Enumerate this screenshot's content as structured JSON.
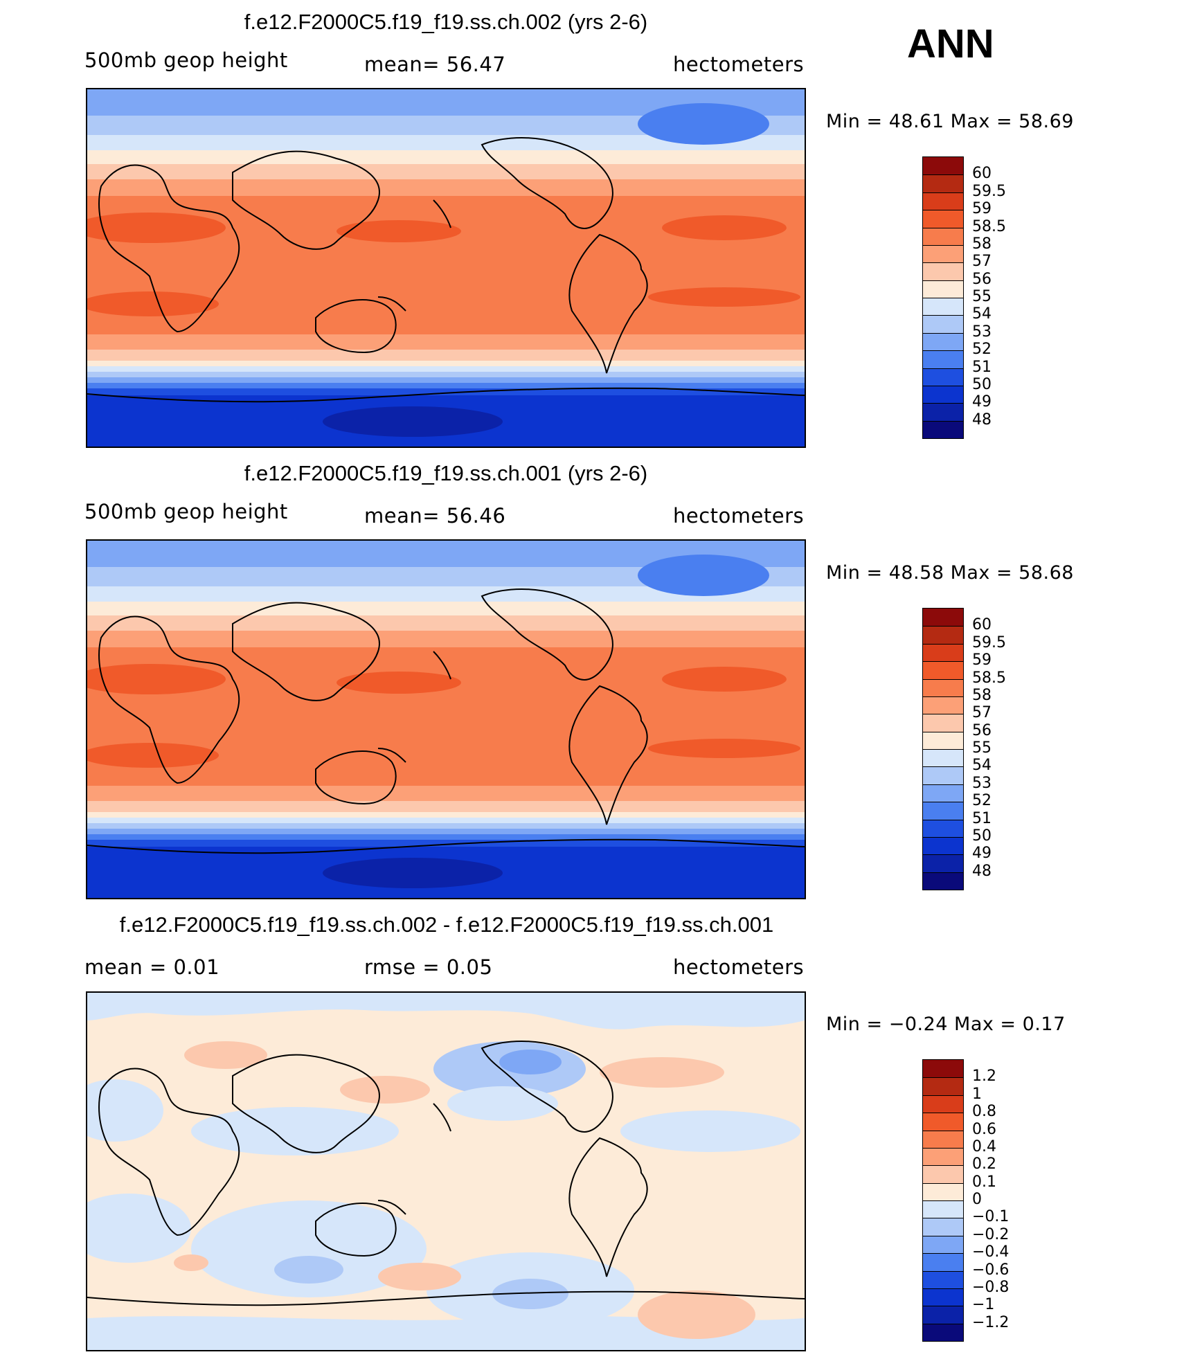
{
  "season": "ANN",
  "panels": [
    {
      "title": "f.e12.F2000C5.f19_f19.ss.ch.002 (yrs 2-6)",
      "left_label": "500mb  geop  height",
      "mid_label": "mean=   56.47",
      "right_label": "hectometers",
      "minmax": "Min  =    48.61  Max  =    58.69"
    },
    {
      "title": "f.e12.F2000C5.f19_f19.ss.ch.001 (yrs 2-6)",
      "left_label": "500mb  geop  height",
      "mid_label": "mean=   56.46",
      "right_label": "hectometers",
      "minmax": "Min  =    48.58  Max  =    58.68"
    },
    {
      "title": "f.e12.F2000C5.f19_f19.ss.ch.002 - f.e12.F2000C5.f19_f19.ss.ch.001",
      "left_label": "mean  =      0.01",
      "mid_label": "rmse  =      0.05",
      "right_label": "hectometers",
      "minmax": "Min  =   −0.24  Max  =      0.17"
    }
  ],
  "chart_data": [
    {
      "type": "heatmap",
      "title": "f.e12.F2000C5.f19_f19.ss.ch.002 (yrs 2-6)",
      "variable": "500mb geop height",
      "units": "hectometers",
      "mean": 56.47,
      "min": 48.61,
      "max": 58.69,
      "contour_levels": [
        48,
        49,
        50,
        51,
        52,
        53,
        54,
        55,
        56,
        57,
        58,
        58.5,
        59,
        59.5,
        60
      ],
      "colors": [
        "#0a0a7a",
        "#0b22a8",
        "#0c34cf",
        "#1e4fe0",
        "#4a7ff0",
        "#7ea7f5",
        "#aec9f7",
        "#d6e6fa",
        "#fdebd8",
        "#fcc8ad",
        "#fca077",
        "#f77c4c",
        "#f05a2a",
        "#d93d1a",
        "#b42a12",
        "#8c0a0a"
      ],
      "projection": "cylindrical equidistant, centered 180"
    },
    {
      "type": "heatmap",
      "title": "f.e12.F2000C5.f19_f19.ss.ch.001 (yrs 2-6)",
      "variable": "500mb geop height",
      "units": "hectometers",
      "mean": 56.46,
      "min": 48.58,
      "max": 58.68,
      "contour_levels": [
        48,
        49,
        50,
        51,
        52,
        53,
        54,
        55,
        56,
        57,
        58,
        58.5,
        59,
        59.5,
        60
      ],
      "colors": [
        "#0a0a7a",
        "#0b22a8",
        "#0c34cf",
        "#1e4fe0",
        "#4a7ff0",
        "#7ea7f5",
        "#aec9f7",
        "#d6e6fa",
        "#fdebd8",
        "#fcc8ad",
        "#fca077",
        "#f77c4c",
        "#f05a2a",
        "#d93d1a",
        "#b42a12",
        "#8c0a0a"
      ],
      "projection": "cylindrical equidistant, centered 180"
    },
    {
      "type": "heatmap",
      "title": "f.e12.F2000C5.f19_f19.ss.ch.002 - f.e12.F2000C5.f19_f19.ss.ch.001",
      "variable": "difference",
      "units": "hectometers",
      "mean": 0.01,
      "rmse": 0.05,
      "min": -0.24,
      "max": 0.17,
      "contour_levels": [
        -1.2,
        -1,
        -0.8,
        -0.6,
        -0.4,
        -0.2,
        -0.1,
        0,
        0.1,
        0.2,
        0.4,
        0.6,
        0.8,
        1,
        1.2
      ],
      "colors": [
        "#0a0a7a",
        "#0b22a8",
        "#0c34cf",
        "#1e4fe0",
        "#4a7ff0",
        "#7ea7f5",
        "#aec9f7",
        "#d6e6fa",
        "#fdebd8",
        "#fcc8ad",
        "#fca077",
        "#f77c4c",
        "#f05a2a",
        "#d93d1a",
        "#b42a12",
        "#8c0a0a"
      ],
      "projection": "cylindrical equidistant, centered 180"
    }
  ],
  "colorbars": [
    {
      "labels": [
        "60",
        "59.5",
        "59",
        "58.5",
        "58",
        "57",
        "56",
        "55",
        "54",
        "53",
        "52",
        "51",
        "50",
        "49",
        "48"
      ]
    },
    {
      "labels": [
        "60",
        "59.5",
        "59",
        "58.5",
        "58",
        "57",
        "56",
        "55",
        "54",
        "53",
        "52",
        "51",
        "50",
        "49",
        "48"
      ]
    },
    {
      "labels": [
        "1.2",
        "1",
        "0.8",
        "0.6",
        "0.4",
        "0.2",
        "0.1",
        "0",
        "−0.1",
        "−0.2",
        "−0.4",
        "−0.6",
        "−0.8",
        "−1",
        "−1.2"
      ]
    }
  ]
}
